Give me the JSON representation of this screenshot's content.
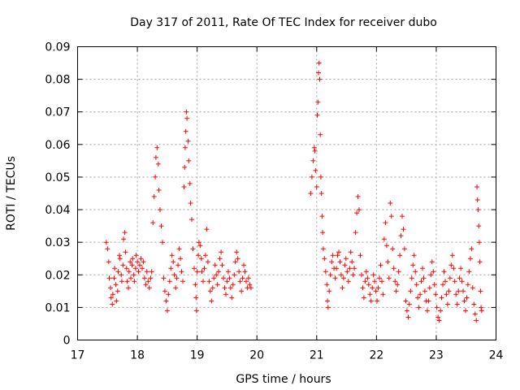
{
  "chart_data": {
    "type": "scatter",
    "title": "Day 317 of 2011, Rate Of TEC Index for receiver dubo",
    "xlabel": "GPS time / hours",
    "ylabel": "ROTI / TECUs",
    "xlim": [
      17,
      24
    ],
    "ylim": [
      0,
      0.09
    ],
    "xticks": [
      "17",
      "18",
      "19",
      "20",
      "21",
      "22",
      "23",
      "24"
    ],
    "yticks": [
      "0",
      "0.01",
      "0.02",
      "0.03",
      "0.04",
      "0.05",
      "0.06",
      "0.07",
      "0.08",
      "0.09"
    ],
    "grid": true,
    "marker": "+",
    "color": "#ff0000",
    "series": [
      {
        "name": "ROTI",
        "points": [
          [
            17.48,
            0.03
          ],
          [
            17.5,
            0.028
          ],
          [
            17.52,
            0.024
          ],
          [
            17.53,
            0.019
          ],
          [
            17.55,
            0.016
          ],
          [
            17.56,
            0.013
          ],
          [
            17.58,
            0.011
          ],
          [
            17.59,
            0.014
          ],
          [
            17.61,
            0.019
          ],
          [
            17.62,
            0.022
          ],
          [
            17.64,
            0.017
          ],
          [
            17.65,
            0.012
          ],
          [
            17.67,
            0.015
          ],
          [
            17.68,
            0.021
          ],
          [
            17.7,
            0.026
          ],
          [
            17.71,
            0.025
          ],
          [
            17.73,
            0.02
          ],
          [
            17.74,
            0.018
          ],
          [
            17.76,
            0.023
          ],
          [
            17.77,
            0.031
          ],
          [
            17.79,
            0.033
          ],
          [
            17.8,
            0.027
          ],
          [
            17.82,
            0.022
          ],
          [
            17.83,
            0.018
          ],
          [
            17.85,
            0.016
          ],
          [
            17.86,
            0.021
          ],
          [
            17.88,
            0.024
          ],
          [
            17.89,
            0.019
          ],
          [
            17.91,
            0.023
          ],
          [
            17.92,
            0.025
          ],
          [
            17.94,
            0.02
          ],
          [
            17.95,
            0.018
          ],
          [
            17.97,
            0.022
          ],
          [
            17.98,
            0.026
          ],
          [
            18.0,
            0.024
          ],
          [
            18.02,
            0.021
          ],
          [
            18.04,
            0.023
          ],
          [
            18.06,
            0.025
          ],
          [
            18.08,
            0.022
          ],
          [
            18.1,
            0.024
          ],
          [
            18.12,
            0.019
          ],
          [
            18.14,
            0.017
          ],
          [
            18.16,
            0.021
          ],
          [
            18.18,
            0.018
          ],
          [
            18.2,
            0.016
          ],
          [
            18.22,
            0.019
          ],
          [
            18.24,
            0.021
          ],
          [
            18.26,
            0.036
          ],
          [
            18.28,
            0.044
          ],
          [
            18.3,
            0.05
          ],
          [
            18.31,
            0.056
          ],
          [
            18.33,
            0.059
          ],
          [
            18.35,
            0.054
          ],
          [
            18.36,
            0.046
          ],
          [
            18.38,
            0.04
          ],
          [
            18.4,
            0.035
          ],
          [
            18.42,
            0.03
          ],
          [
            18.44,
            0.019
          ],
          [
            18.46,
            0.015
          ],
          [
            18.48,
            0.012
          ],
          [
            18.5,
            0.009
          ],
          [
            18.52,
            0.014
          ],
          [
            18.54,
            0.018
          ],
          [
            18.56,
            0.022
          ],
          [
            18.58,
            0.026
          ],
          [
            18.6,
            0.024
          ],
          [
            18.62,
            0.02
          ],
          [
            18.64,
            0.016
          ],
          [
            18.66,
            0.019
          ],
          [
            18.68,
            0.023
          ],
          [
            18.7,
            0.028
          ],
          [
            18.72,
            0.025
          ],
          [
            18.74,
            0.021
          ],
          [
            18.76,
            0.018
          ],
          [
            18.78,
            0.047
          ],
          [
            18.79,
            0.053
          ],
          [
            18.8,
            0.059
          ],
          [
            18.81,
            0.064
          ],
          [
            18.82,
            0.07
          ],
          [
            18.83,
            0.068
          ],
          [
            18.85,
            0.061
          ],
          [
            18.86,
            0.055
          ],
          [
            18.88,
            0.048
          ],
          [
            18.89,
            0.042
          ],
          [
            18.91,
            0.037
          ],
          [
            18.93,
            0.028
          ],
          [
            18.95,
            0.022
          ],
          [
            18.97,
            0.017
          ],
          [
            18.98,
            0.013
          ],
          [
            18.99,
            0.009
          ],
          [
            19.0,
            0.021
          ],
          [
            19.02,
            0.026
          ],
          [
            19.03,
            0.03
          ],
          [
            19.05,
            0.029
          ],
          [
            19.07,
            0.025
          ],
          [
            19.08,
            0.021
          ],
          [
            19.1,
            0.018
          ],
          [
            19.12,
            0.022
          ],
          [
            19.14,
            0.026
          ],
          [
            19.16,
            0.034
          ],
          [
            19.18,
            0.024
          ],
          [
            19.2,
            0.018
          ],
          [
            19.22,
            0.015
          ],
          [
            19.24,
            0.012
          ],
          [
            19.26,
            0.016
          ],
          [
            19.28,
            0.019
          ],
          [
            19.3,
            0.023
          ],
          [
            19.32,
            0.02
          ],
          [
            19.34,
            0.017
          ],
          [
            19.36,
            0.021
          ],
          [
            19.38,
            0.025
          ],
          [
            19.4,
            0.027
          ],
          [
            19.42,
            0.023
          ],
          [
            19.44,
            0.019
          ],
          [
            19.46,
            0.016
          ],
          [
            19.48,
            0.014
          ],
          [
            19.5,
            0.018
          ],
          [
            19.52,
            0.021
          ],
          [
            19.54,
            0.019
          ],
          [
            19.56,
            0.016
          ],
          [
            19.58,
            0.013
          ],
          [
            19.6,
            0.017
          ],
          [
            19.62,
            0.02
          ],
          [
            19.64,
            0.024
          ],
          [
            19.66,
            0.027
          ],
          [
            19.68,
            0.025
          ],
          [
            19.7,
            0.021
          ],
          [
            19.72,
            0.018
          ],
          [
            19.74,
            0.015
          ],
          [
            19.76,
            0.019
          ],
          [
            19.78,
            0.023
          ],
          [
            19.8,
            0.021
          ],
          [
            19.82,
            0.018
          ],
          [
            19.84,
            0.016
          ],
          [
            19.86,
            0.019
          ],
          [
            19.88,
            0.017
          ],
          [
            19.9,
            0.016
          ],
          [
            20.9,
            0.045
          ],
          [
            20.92,
            0.05
          ],
          [
            20.94,
            0.055
          ],
          [
            20.96,
            0.059
          ],
          [
            20.97,
            0.058
          ],
          [
            20.98,
            0.052
          ],
          [
            21.0,
            0.047
          ],
          [
            21.01,
            0.069
          ],
          [
            21.02,
            0.073
          ],
          [
            21.03,
            0.082
          ],
          [
            21.04,
            0.085
          ],
          [
            21.05,
            0.08
          ],
          [
            21.06,
            0.063
          ],
          [
            21.07,
            0.05
          ],
          [
            21.08,
            0.045
          ],
          [
            21.09,
            0.038
          ],
          [
            21.1,
            0.033
          ],
          [
            21.11,
            0.028
          ],
          [
            21.13,
            0.025
          ],
          [
            21.15,
            0.021
          ],
          [
            21.17,
            0.017
          ],
          [
            21.18,
            0.012
          ],
          [
            21.19,
            0.01
          ],
          [
            21.21,
            0.015
          ],
          [
            21.23,
            0.02
          ],
          [
            21.25,
            0.024
          ],
          [
            21.27,
            0.026
          ],
          [
            21.29,
            0.022
          ],
          [
            21.31,
            0.019
          ],
          [
            21.33,
            0.022
          ],
          [
            21.35,
            0.026
          ],
          [
            21.37,
            0.027
          ],
          [
            21.39,
            0.024
          ],
          [
            21.41,
            0.02
          ],
          [
            21.43,
            0.016
          ],
          [
            21.45,
            0.019
          ],
          [
            21.47,
            0.023
          ],
          [
            21.49,
            0.025
          ],
          [
            21.51,
            0.021
          ],
          [
            21.53,
            0.018
          ],
          [
            21.55,
            0.022
          ],
          [
            21.57,
            0.027
          ],
          [
            21.59,
            0.024
          ],
          [
            21.61,
            0.02
          ],
          [
            21.63,
            0.022
          ],
          [
            21.65,
            0.033
          ],
          [
            21.67,
            0.039
          ],
          [
            21.69,
            0.044
          ],
          [
            21.71,
            0.04
          ],
          [
            21.73,
            0.026
          ],
          [
            21.75,
            0.02
          ],
          [
            21.77,
            0.016
          ],
          [
            21.79,
            0.013
          ],
          [
            21.81,
            0.018
          ],
          [
            21.83,
            0.021
          ],
          [
            21.85,
            0.019
          ],
          [
            21.87,
            0.017
          ],
          [
            21.89,
            0.014
          ],
          [
            21.91,
            0.012
          ],
          [
            21.93,
            0.016
          ],
          [
            21.95,
            0.02
          ],
          [
            21.97,
            0.018
          ],
          [
            21.99,
            0.015
          ],
          [
            22.01,
            0.012
          ],
          [
            22.03,
            0.016
          ],
          [
            22.05,
            0.019
          ],
          [
            22.07,
            0.023
          ],
          [
            22.09,
            0.018
          ],
          [
            22.11,
            0.014
          ],
          [
            22.13,
            0.031
          ],
          [
            22.15,
            0.036
          ],
          [
            22.17,
            0.029
          ],
          [
            22.19,
            0.024
          ],
          [
            22.21,
            0.019
          ],
          [
            22.23,
            0.042
          ],
          [
            22.25,
            0.038
          ],
          [
            22.27,
            0.028
          ],
          [
            22.29,
            0.022
          ],
          [
            22.31,
            0.018
          ],
          [
            22.33,
            0.015
          ],
          [
            22.35,
            0.017
          ],
          [
            22.37,
            0.021
          ],
          [
            22.39,
            0.026
          ],
          [
            22.41,
            0.032
          ],
          [
            22.43,
            0.038
          ],
          [
            22.45,
            0.034
          ],
          [
            22.47,
            0.028
          ],
          [
            22.49,
            0.012
          ],
          [
            22.51,
            0.009
          ],
          [
            22.53,
            0.007
          ],
          [
            22.55,
            0.011
          ],
          [
            22.57,
            0.015
          ],
          [
            22.59,
            0.019
          ],
          [
            22.61,
            0.023
          ],
          [
            22.63,
            0.026
          ],
          [
            22.65,
            0.021
          ],
          [
            22.67,
            0.017
          ],
          [
            22.69,
            0.013
          ],
          [
            22.71,
            0.01
          ],
          [
            22.73,
            0.014
          ],
          [
            22.75,
            0.018
          ],
          [
            22.77,
            0.022
          ],
          [
            22.79,
            0.019
          ],
          [
            22.81,
            0.015
          ],
          [
            22.83,
            0.012
          ],
          [
            22.85,
            0.009
          ],
          [
            22.87,
            0.012
          ],
          [
            22.89,
            0.016
          ],
          [
            22.91,
            0.02
          ],
          [
            22.93,
            0.024
          ],
          [
            22.95,
            0.021
          ],
          [
            22.97,
            0.017
          ],
          [
            22.99,
            0.014
          ],
          [
            23.01,
            0.01
          ],
          [
            23.03,
            0.007
          ],
          [
            23.05,
            0.006
          ],
          [
            23.07,
            0.009
          ],
          [
            23.09,
            0.013
          ],
          [
            23.11,
            0.017
          ],
          [
            23.13,
            0.021
          ],
          [
            23.15,
            0.018
          ],
          [
            23.17,
            0.014
          ],
          [
            23.19,
            0.011
          ],
          [
            23.21,
            0.015
          ],
          [
            23.23,
            0.019
          ],
          [
            23.25,
            0.023
          ],
          [
            23.27,
            0.026
          ],
          [
            23.29,
            0.022
          ],
          [
            23.31,
            0.018
          ],
          [
            23.33,
            0.014
          ],
          [
            23.35,
            0.011
          ],
          [
            23.37,
            0.015
          ],
          [
            23.39,
            0.019
          ],
          [
            23.41,
            0.022
          ],
          [
            23.43,
            0.018
          ],
          [
            23.45,
            0.015
          ],
          [
            23.47,
            0.012
          ],
          [
            23.49,
            0.009
          ],
          [
            23.51,
            0.013
          ],
          [
            23.53,
            0.017
          ],
          [
            23.55,
            0.021
          ],
          [
            23.57,
            0.025
          ],
          [
            23.59,
            0.028
          ],
          [
            23.61,
            0.016
          ],
          [
            23.63,
            0.011
          ],
          [
            23.65,
            0.008
          ],
          [
            23.67,
            0.006
          ],
          [
            23.68,
            0.047
          ],
          [
            23.69,
            0.043
          ],
          [
            23.7,
            0.04
          ],
          [
            23.71,
            0.035
          ],
          [
            23.72,
            0.03
          ],
          [
            23.73,
            0.024
          ],
          [
            23.74,
            0.015
          ],
          [
            23.75,
            0.01
          ],
          [
            23.76,
            0.009
          ]
        ]
      }
    ]
  }
}
